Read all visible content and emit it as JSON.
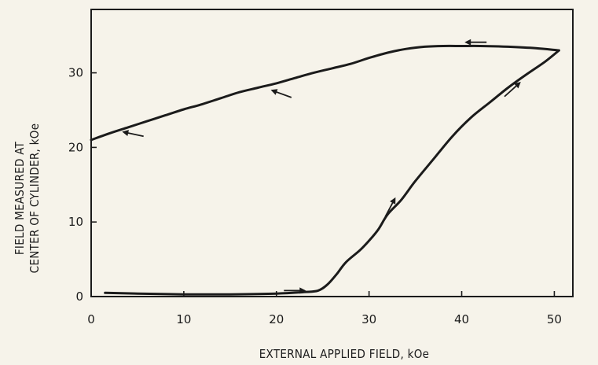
{
  "chart_data": {
    "type": "line",
    "title": "",
    "xlabel": "EXTERNAL APPLIED FIELD, kOe",
    "ylabel_lines": [
      "FIELD MEASURED AT",
      "CENTER OF CYLINDER, kOe"
    ],
    "xlim": [
      0,
      52
    ],
    "ylim": [
      0,
      38.5
    ],
    "x_ticks": [
      0,
      10,
      20,
      30,
      40,
      50
    ],
    "y_ticks": [
      0,
      10,
      20,
      30
    ],
    "grid": false,
    "legend": "none",
    "series": [
      {
        "direction": "increasing",
        "x": [
          1.5,
          5,
          10,
          15,
          20,
          23,
          24.5,
          25.5,
          26.5,
          27.5,
          29,
          30,
          31,
          32,
          33.5,
          35,
          37,
          39,
          41,
          43,
          45,
          47,
          49,
          50.5
        ],
        "y": [
          0.5,
          0.4,
          0.3,
          0.3,
          0.4,
          0.6,
          0.8,
          1.6,
          3.0,
          4.6,
          6.2,
          7.5,
          9.0,
          11.0,
          13.0,
          15.5,
          18.5,
          21.5,
          24.0,
          26.0,
          28.0,
          29.8,
          31.5,
          33.0
        ]
      },
      {
        "direction": "decreasing",
        "x": [
          50.5,
          48,
          45,
          42,
          40,
          38,
          36,
          34,
          32,
          30,
          28,
          26,
          24,
          22,
          20,
          18,
          16,
          14,
          12,
          10,
          8,
          6,
          4,
          2,
          0
        ],
        "y": [
          33.0,
          33.3,
          33.5,
          33.6,
          33.6,
          33.6,
          33.5,
          33.2,
          32.7,
          32.0,
          31.2,
          30.6,
          30.0,
          29.3,
          28.6,
          28.0,
          27.4,
          26.6,
          25.8,
          25.1,
          24.3,
          23.5,
          22.7,
          21.9,
          21.0
        ]
      }
    ],
    "arrows": [
      {
        "x": 22,
        "y": 0.8,
        "dir": "right"
      },
      {
        "x": 32.3,
        "y": 12.0,
        "dir": "up"
      },
      {
        "x": 45.5,
        "y": 27.8,
        "dir": "up"
      },
      {
        "x": 41.5,
        "y": 34.1,
        "dir": "left"
      },
      {
        "x": 20.5,
        "y": 27.2,
        "dir": "left"
      },
      {
        "x": 4.5,
        "y": 21.8,
        "dir": "left"
      }
    ]
  }
}
